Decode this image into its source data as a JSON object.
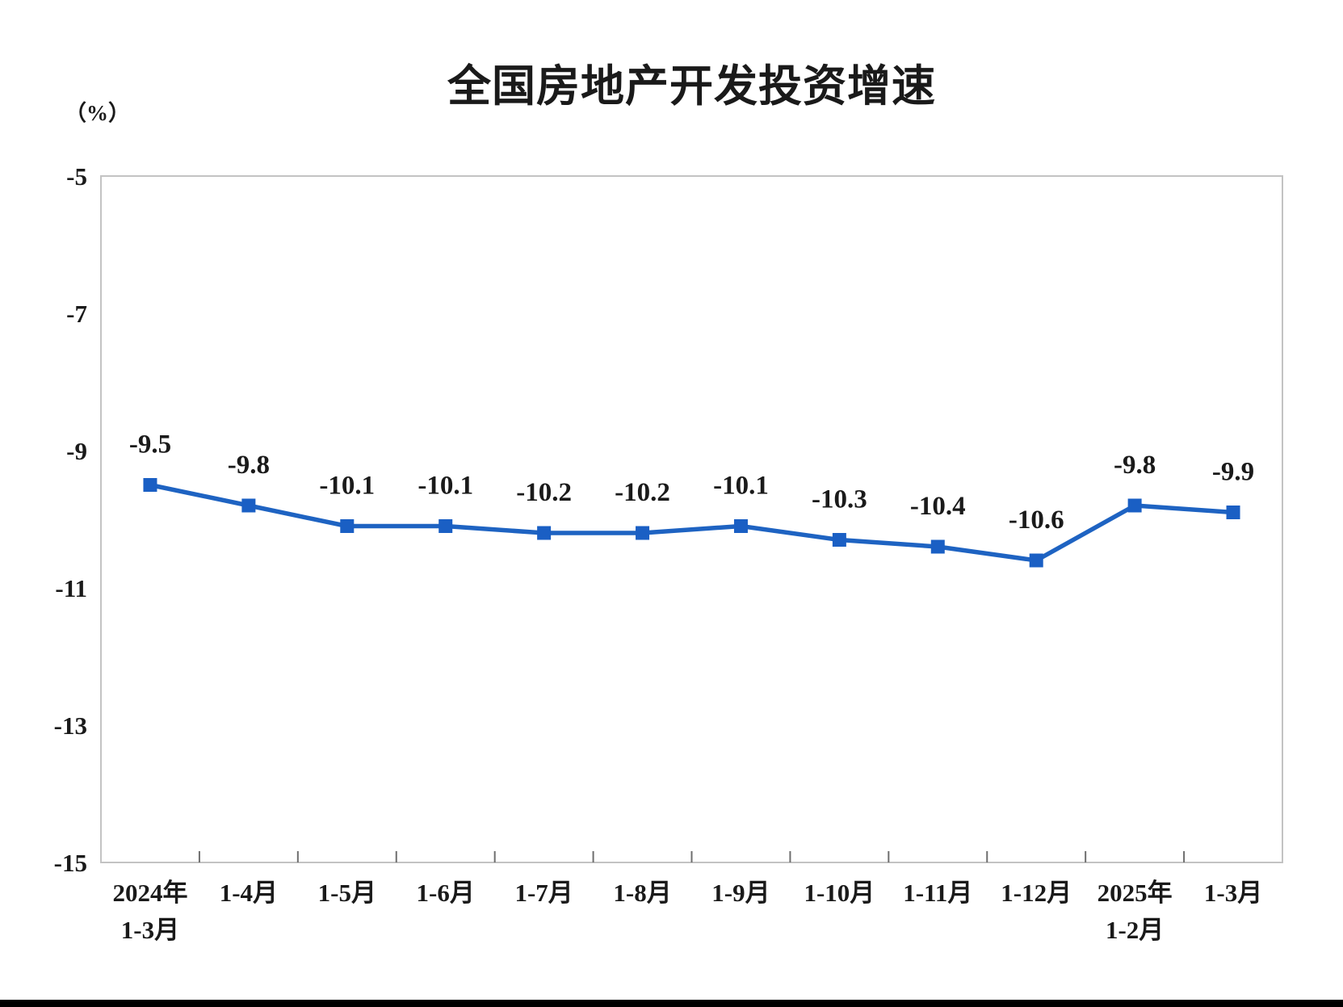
{
  "page": {
    "title": "全国房地产开发投资增速",
    "y_unit_label": "（%）"
  },
  "chart_data": {
    "type": "line",
    "title": "全国房地产开发投资增速",
    "ylabel": "（%）",
    "xlabel": "",
    "categories": [
      [
        "2024年",
        "1-3月"
      ],
      [
        "1-4月"
      ],
      [
        "1-5月"
      ],
      [
        "1-6月"
      ],
      [
        "1-7月"
      ],
      [
        "1-8月"
      ],
      [
        "1-9月"
      ],
      [
        "1-10月"
      ],
      [
        "1-11月"
      ],
      [
        "1-12月"
      ],
      [
        "2025年",
        "1-2月"
      ],
      [
        "1-3月"
      ]
    ],
    "values": [
      -9.5,
      -9.8,
      -10.1,
      -10.1,
      -10.2,
      -10.2,
      -10.1,
      -10.3,
      -10.4,
      -10.6,
      -9.8,
      -9.9
    ],
    "data_labels": [
      "-9.5",
      "-9.8",
      "-10.1",
      "-10.1",
      "-10.2",
      "-10.2",
      "-10.1",
      "-10.3",
      "-10.4",
      "-10.6",
      "-9.8",
      "-9.9"
    ],
    "ylim": [
      -15,
      -5
    ],
    "yticks": [
      -5,
      -7,
      -9,
      -11,
      -13,
      -15
    ],
    "grid": false,
    "legend": "none",
    "marker": "square",
    "line_color": "#1E63C2",
    "marker_color": "#1A5FC4",
    "axis_color": "#C3C3C3",
    "tick_color": "#6E6E6E",
    "text_color": "#1A1A1A"
  }
}
